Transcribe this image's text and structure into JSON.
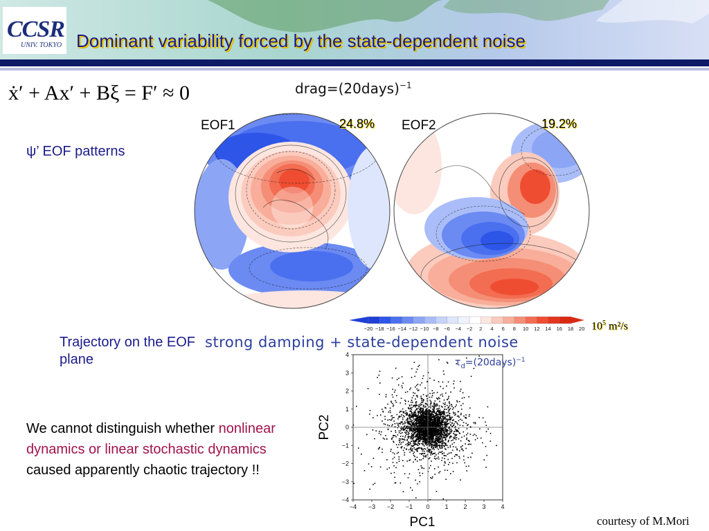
{
  "header": {
    "logo_text": "CCSR",
    "logo_subtext": "UNIV. TOKYO",
    "title": "Dominant variability forced by the state-dependent noise"
  },
  "equation": "ẋ′ + Ax′ + Bξ = F′ ≈ 0",
  "drag_label": {
    "text": "drag=(20days)",
    "exponent": "−1"
  },
  "psi_label": "ψ’ EOF patterns",
  "maps": [
    {
      "label": "EOF1",
      "variance": "24.8%"
    },
    {
      "label": "EOF2",
      "variance": "19.2%"
    }
  ],
  "colorbar": {
    "levels": [
      -20,
      -18,
      -16,
      -14,
      -12,
      -10,
      -8,
      -6,
      -4,
      -2,
      2,
      4,
      6,
      8,
      10,
      12,
      14,
      16,
      18,
      20
    ],
    "tick_labels": [
      "−20",
      "−18",
      "−16",
      "−14",
      "−12",
      "−10",
      "−8",
      "−6",
      "−4",
      "−2",
      "2",
      "4",
      "6",
      "8",
      "10",
      "12",
      "14",
      "16",
      "18",
      "20"
    ],
    "colors": [
      "#1f3fd6",
      "#2d55e8",
      "#4a6fef",
      "#6b8af2",
      "#8ca5f5",
      "#aabdf8",
      "#c6d3fa",
      "#dde6fc",
      "#eef3fe",
      "#ffffff",
      "#fde6e0",
      "#fbcbbe",
      "#f8ae9a",
      "#f58e76",
      "#f26d52",
      "#ef4d31",
      "#e3361d",
      "#d92a14"
    ],
    "units": "10",
    "units_exp": "5",
    "units_rest": " m²/s"
  },
  "trajectory_label": "Trajectory on the EOF plane",
  "damping_label": "strong damping + state-dependent noise",
  "tau_label": {
    "symbol": "τ",
    "subscript": "d",
    "text": "=(20days)",
    "exponent": "−1"
  },
  "body_text": {
    "part1": "We cannot distinguish whether ",
    "highlight": "nonlinear dynamics or linear stochastic dynamics",
    "part2": " caused apparently chaotic trajectory !!"
  },
  "courtesy": "courtesy of M.Mori",
  "chart_data": {
    "type": "scatter",
    "xlabel": "PC1",
    "ylabel": "PC2",
    "xlim": [
      -4,
      4
    ],
    "ylim": [
      -4,
      4
    ],
    "x_ticks": [
      "−4",
      "−3",
      "−2",
      "−1",
      "0",
      "1",
      "2",
      "3",
      "4"
    ],
    "y_ticks": [
      "4",
      "3",
      "2",
      "1",
      "0",
      "−1",
      "−2",
      "−3",
      "−4"
    ],
    "reference_lines": {
      "x": 0,
      "y": 0
    },
    "core": {
      "n": 2200,
      "center": [
        0,
        0
      ],
      "sd": 0.55
    },
    "cloud": {
      "n": 800,
      "center": [
        0,
        0
      ],
      "sd": 1.3
    },
    "tail": {
      "n": 140,
      "center": [
        0,
        0
      ],
      "sd": 2.2
    }
  }
}
